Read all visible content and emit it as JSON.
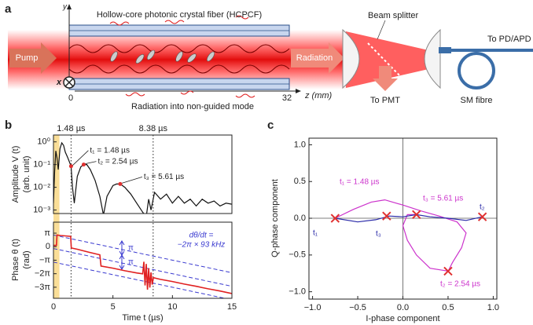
{
  "diagram": {
    "panel_label": "a",
    "fiber_label": "Hollow-core photonic crystal fiber (HCPCF)",
    "y_axis": "y",
    "x_axis": "x",
    "z_start": "0",
    "z_end": "32",
    "z_unit": "z (mm)",
    "pump": "Pump",
    "radiation": "Radiation",
    "beam_splitter": "Beam splitter",
    "to_pmt": "To PMT",
    "to_pd": "To PD/APD",
    "sm_fibre": "SM fibre",
    "nonguided": "Radiation into non-guided mode"
  },
  "chart_data": [
    {
      "type": "line",
      "panel_label": "b",
      "ylabel": "Amplitude V (t)",
      "ylabel_unit": "(arb. unit)",
      "log_y": true,
      "x": [
        0,
        0.1,
        0.2,
        0.3,
        0.4,
        0.55,
        0.7,
        0.85,
        1.0,
        1.2,
        1.48,
        1.6,
        1.75,
        2.0,
        2.3,
        2.54,
        2.8,
        3.1,
        3.5,
        3.9,
        4.2,
        4.5,
        5.0,
        5.3,
        5.61,
        6.0,
        6.5,
        7.0,
        7.5,
        7.8,
        8.0,
        8.2,
        8.5,
        9,
        9.5,
        10,
        10.5,
        11,
        11.5,
        12,
        12.5,
        13,
        13.5,
        14,
        14.5,
        15
      ],
      "series": [
        {
          "color": "#111111",
          "values": [
            0.002,
            0.05,
            0.4,
            0.2,
            0.06,
            0.5,
            0.9,
            0.7,
            0.35,
            0.2,
            0.085,
            0.01,
            0.002,
            0.03,
            0.08,
            0.1,
            0.1,
            0.06,
            0.02,
            0.004,
            0.0006,
            0.004,
            0.012,
            0.014,
            0.014,
            0.01,
            0.005,
            0.002,
            0.0008,
            0.0005,
            0.003,
            0.001,
            0.006,
            0.003,
            0.005,
            0.002,
            0.004,
            0.002,
            0.003,
            0.0015,
            0.003,
            0.002,
            0.0025,
            0.0015,
            0.002,
            0.0018
          ]
        }
      ],
      "points": {
        "color": "#e03030",
        "x": [
          1.48,
          2.54,
          5.61
        ],
        "values": [
          0.085,
          0.1,
          0.014
        ],
        "labels": [
          "t₁ = 1.48 µs",
          "t₂ = 2.54 µs",
          "t₃ = 5.61 µs"
        ]
      },
      "vlines": [
        {
          "value": 1.48,
          "label": "1.48 µs"
        },
        {
          "value": 8.38,
          "label": "8.38 µs"
        }
      ],
      "highlight": {
        "color": "#f5c242",
        "x": [
          0,
          0.5
        ]
      },
      "xlim": [
        0,
        15
      ],
      "ylim": [
        0.0007,
        2
      ],
      "yticks": [
        {
          "value": 1,
          "label": "10⁰"
        },
        {
          "value": 0.1,
          "label": "10⁻¹"
        },
        {
          "value": 0.01,
          "label": "10⁻²"
        },
        {
          "value": 0.001,
          "label": "10⁻³"
        }
      ]
    },
    {
      "type": "line",
      "ylabel": "Phase θ (t)",
      "ylabel_unit": "(rad)",
      "xlabel": "Time t (µs)",
      "x": [
        0,
        0.25,
        0.3,
        0.6,
        1.0,
        1.45,
        1.5,
        2.0,
        3.0,
        3.9,
        4.0,
        5.0,
        6.0,
        7.0,
        7.5,
        7.6,
        7.7,
        7.8,
        7.9,
        8.0,
        8.1,
        8.2,
        8.3,
        8.4,
        9,
        10,
        11,
        12,
        13,
        14,
        15
      ],
      "series": [
        {
          "color": "#e02020",
          "values": [
            0.3,
            0.3,
            2.7,
            2.6,
            2.5,
            2.4,
            -0.3,
            -0.6,
            -1.3,
            -1.9,
            -4.5,
            -5.0,
            -5.6,
            -6.1,
            -6.3,
            -3.5,
            -9,
            -4,
            -10,
            -5,
            -9.5,
            -6,
            -8.8,
            -7.2,
            -7.6,
            -8.1,
            -8.7,
            -9.2,
            -9.8,
            -10.3,
            -10.9
          ]
        }
      ],
      "fits": [
        {
          "color": "#3a3ad0",
          "dash": true,
          "x": [
            0,
            15
          ],
          "values": [
            2.7,
            -6.06
          ]
        },
        {
          "color": "#3a3ad0",
          "dash": true,
          "x": [
            0,
            15
          ],
          "values": [
            -0.44,
            -9.2
          ]
        },
        {
          "color": "#3a3ad0",
          "dash": true,
          "x": [
            0,
            15
          ],
          "values": [
            -3.58,
            -12.34
          ]
        }
      ],
      "rate_label": [
        "dθ/dt =",
        "−2π × 93 kHz"
      ],
      "step_labels": [
        "π",
        "π"
      ],
      "xlim": [
        0,
        15
      ],
      "ylim": [
        -12,
        5.7
      ],
      "xticks": [
        0,
        5,
        10,
        15
      ],
      "yticks": [
        {
          "value": 3.14159,
          "label": "π"
        },
        0,
        {
          "value": -3.14159,
          "label": "−π"
        },
        {
          "value": -6.28319,
          "label": "−2π"
        },
        {
          "value": -9.42478,
          "label": "−3π"
        }
      ]
    },
    {
      "type": "line",
      "panel_label": "c",
      "xlabel": "I-phase component",
      "ylabel": "Q-phase component",
      "series": [
        {
          "color": "#cc33cc",
          "x": [
            -0.75,
            -0.55,
            -0.35,
            -0.2,
            0.0,
            0.2,
            0.4,
            0.6,
            0.7,
            0.65,
            0.55,
            0.5,
            0.3,
            0.15,
            0.05,
            0.0,
            0.05,
            0.15
          ],
          "values": [
            0.0,
            0.12,
            0.22,
            0.25,
            0.18,
            0.1,
            0.03,
            -0.05,
            -0.2,
            -0.4,
            -0.6,
            -0.72,
            -0.68,
            -0.5,
            -0.3,
            -0.1,
            0.05,
            0.05
          ]
        },
        {
          "color": "#2a2aa8",
          "x": [
            -0.75,
            -0.5,
            -0.3,
            -0.15,
            0,
            0.15,
            0.3,
            0.5,
            0.7,
            0.88
          ],
          "values": [
            0,
            -0.05,
            -0.02,
            0.03,
            0.02,
            0.05,
            0.02,
            0.0,
            -0.03,
            0.02
          ]
        }
      ],
      "markers": {
        "color": "#e03030",
        "x": [
          -0.75,
          -0.18,
          0.15,
          0.88,
          0.5
        ],
        "values": [
          0.0,
          0.03,
          0.05,
          0.02,
          -0.72
        ]
      },
      "labels": [
        {
          "text": "t₁ = 1.48 µs",
          "color": "#cc33cc"
        },
        {
          "text": "t₃ = 5.61 µs",
          "color": "#cc33cc"
        },
        {
          "text": "t₂ = 2.54 µs",
          "color": "#cc33cc"
        },
        {
          "text": "t₁",
          "color": "#2a2aa8"
        },
        {
          "text": "t₃",
          "color": "#2a2aa8"
        },
        {
          "text": "t₂",
          "color": "#2a2aa8"
        }
      ],
      "xlim": [
        -1.04,
        1.04
      ],
      "ylim": [
        -1.1,
        1.09
      ],
      "xticks": [
        {
          "value": -1,
          "label": "−1.0"
        },
        {
          "value": -0.5,
          "label": "−0.5"
        },
        {
          "value": 0,
          "label": "0.0"
        },
        {
          "value": 0.5,
          "label": "0.5"
        },
        {
          "value": 1,
          "label": "1.0"
        }
      ],
      "yticks": [
        {
          "value": 1,
          "label": "1.0"
        },
        {
          "value": 0.5,
          "label": "0.5"
        },
        {
          "value": 0,
          "label": "0.0"
        },
        {
          "value": -0.5,
          "label": "−0.5"
        },
        {
          "value": -1,
          "label": "−1.0"
        }
      ]
    }
  ]
}
